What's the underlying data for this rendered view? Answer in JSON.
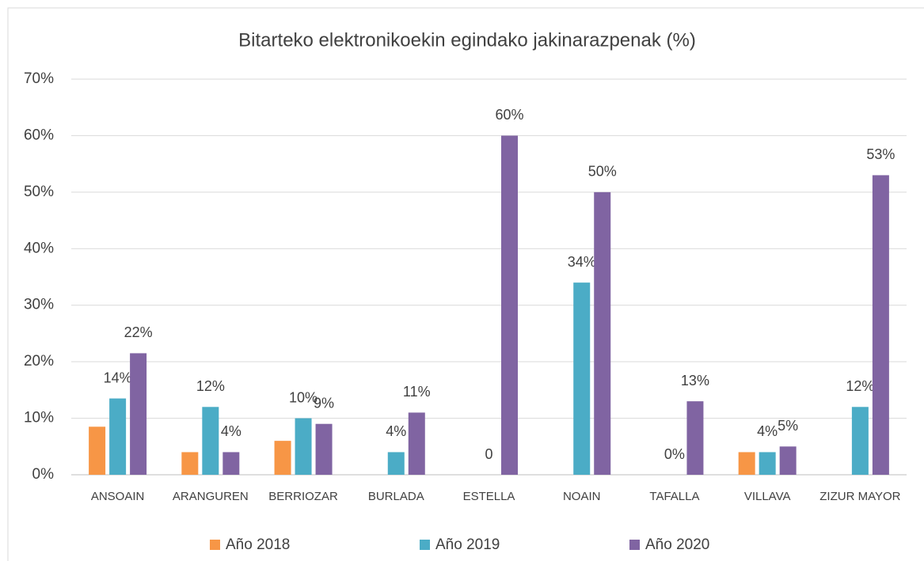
{
  "chart_data": {
    "type": "bar",
    "title": "Bitarteko elektronikoekin egindako jakinarazpenak (%)",
    "categories": [
      "ANSOAIN",
      "ARANGUREN",
      "BERRIOZAR",
      "BURLADA",
      "ESTELLA",
      "NOAIN",
      "TAFALLA",
      "VILLAVA",
      "ZIZUR MAYOR"
    ],
    "series": [
      {
        "name": "Año 2018",
        "color": "#f79646",
        "values": [
          8.5,
          4,
          6,
          null,
          null,
          null,
          null,
          4,
          null
        ]
      },
      {
        "name": "Año 2019",
        "color": "#4bacc6",
        "values": [
          13.5,
          12,
          10,
          4,
          0,
          34,
          0,
          4,
          12
        ],
        "value_labels": [
          "14%",
          "12%",
          "10%",
          "4%",
          "0",
          "34%",
          "0%",
          "4%",
          "12%"
        ]
      },
      {
        "name": "Año 2020",
        "color": "#8064a2",
        "values": [
          21.5,
          4,
          9,
          11,
          60,
          50,
          13,
          5,
          53
        ],
        "value_labels": [
          "22%",
          "4%",
          "9%",
          "11%",
          "60%",
          "50%",
          "13%",
          "5%",
          "53%"
        ]
      }
    ],
    "ylim": [
      0,
      70
    ],
    "yticks": [
      {
        "value": 0,
        "label": "0%"
      },
      {
        "value": 10,
        "label": "10%"
      },
      {
        "value": 20,
        "label": "20%"
      },
      {
        "value": 30,
        "label": "30%"
      },
      {
        "value": 40,
        "label": "40%"
      },
      {
        "value": 50,
        "label": "50%"
      },
      {
        "value": 60,
        "label": "60%"
      },
      {
        "value": 70,
        "label": "70%"
      }
    ],
    "grid": true,
    "legend": "bottom"
  }
}
